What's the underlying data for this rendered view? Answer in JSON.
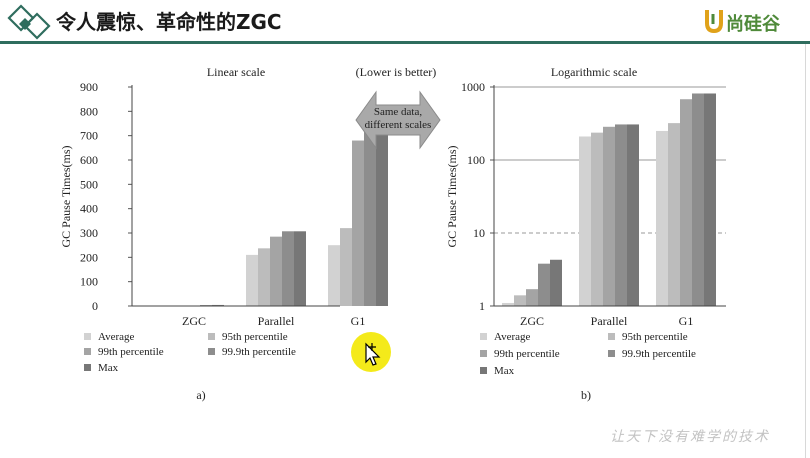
{
  "slide": {
    "title": "令人震惊、革命性的ZGC",
    "logo_text": "尚硅谷",
    "footer_slogan": "让天下没有难学的技术"
  },
  "center_label": {
    "note": "(Lower is better)",
    "arrow_line1": "Same data,",
    "arrow_line2": "different scales"
  },
  "colors": {
    "header_rule": "#2f6d5e",
    "logo": "#4f8a3a",
    "series": [
      "#d2d2d2",
      "#bcbcbc",
      "#a4a4a4",
      "#8d8d8d",
      "#777777"
    ]
  },
  "icons": {
    "logo": "diamond-logo-icon",
    "brand": "u-brand-icon",
    "cursor": "move-cursor-icon",
    "arrow": "double-arrow-icon"
  },
  "chart_data": [
    {
      "type": "bar",
      "title": "Linear scale",
      "panel_label": "a)",
      "xlabel": "",
      "ylabel": "GC Pause Times(ms)",
      "yscale": "linear",
      "ylim": [
        0,
        900
      ],
      "yticks": [
        "0",
        "100",
        "200",
        "300",
        "400",
        "500",
        "600",
        "700",
        "800",
        "900"
      ],
      "grid": false,
      "legend_position": "bottom",
      "categories": [
        "ZGC",
        "Parallel",
        "G1"
      ],
      "series": [
        {
          "name": "Average",
          "values": [
            1.1,
            210,
            250
          ]
        },
        {
          "name": "95th percentile",
          "values": [
            1.4,
            237,
            320
          ]
        },
        {
          "name": "99th percentile",
          "values": [
            1.7,
            285,
            680
          ]
        },
        {
          "name": "99.9th percentile",
          "values": [
            3.8,
            307,
            815
          ]
        },
        {
          "name": "Max",
          "values": [
            4.3,
            307,
            815
          ]
        }
      ]
    },
    {
      "type": "bar",
      "title": "Logarithmic scale",
      "panel_label": "b)",
      "xlabel": "",
      "ylabel": "GC Pause Times(ms)",
      "yscale": "log",
      "ylim": [
        1,
        1000
      ],
      "yticks": [
        "1",
        "10",
        "100",
        "1000"
      ],
      "grid": true,
      "legend_position": "bottom",
      "categories": [
        "ZGC",
        "Parallel",
        "G1"
      ],
      "series": [
        {
          "name": "Average",
          "values": [
            1.1,
            210,
            250
          ]
        },
        {
          "name": "95th percentile",
          "values": [
            1.4,
            237,
            320
          ]
        },
        {
          "name": "99th percentile",
          "values": [
            1.7,
            285,
            680
          ]
        },
        {
          "name": "99.9th percentile",
          "values": [
            3.8,
            307,
            815
          ]
        },
        {
          "name": "Max",
          "values": [
            4.3,
            307,
            815
          ]
        }
      ]
    }
  ]
}
